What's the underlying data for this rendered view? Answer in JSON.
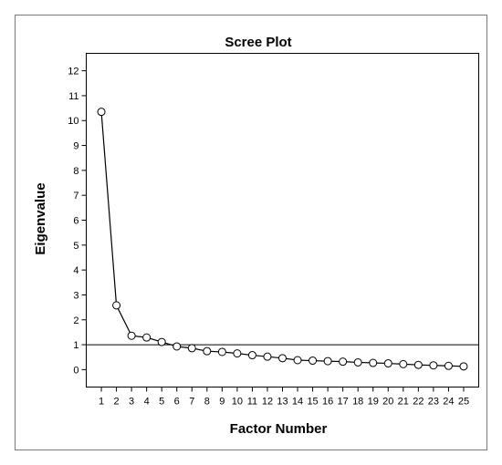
{
  "chart_data": {
    "type": "line",
    "title": "Scree Plot",
    "xlabel": "Factor Number",
    "ylabel": "Eigenvalue",
    "x": [
      1,
      2,
      3,
      4,
      5,
      6,
      7,
      8,
      9,
      10,
      11,
      12,
      13,
      14,
      15,
      16,
      17,
      18,
      19,
      20,
      21,
      22,
      23,
      24,
      25
    ],
    "y": [
      10.35,
      2.58,
      1.36,
      1.29,
      1.11,
      0.93,
      0.86,
      0.74,
      0.71,
      0.65,
      0.58,
      0.52,
      0.46,
      0.38,
      0.36,
      0.34,
      0.32,
      0.29,
      0.27,
      0.25,
      0.22,
      0.19,
      0.17,
      0.15,
      0.13
    ],
    "xticks": [
      "1",
      "2",
      "3",
      "4",
      "5",
      "6",
      "7",
      "8",
      "9",
      "10",
      "11",
      "12",
      "13",
      "14",
      "15",
      "16",
      "17",
      "18",
      "19",
      "20",
      "21",
      "22",
      "23",
      "24",
      "25"
    ],
    "yticks": [
      "0",
      "1",
      "2",
      "3",
      "4",
      "5",
      "6",
      "7",
      "8",
      "9",
      "10",
      "11",
      "12"
    ],
    "ylim": [
      -0.7,
      12.7
    ],
    "xlim": [
      0,
      26
    ],
    "reference_line_y": 1,
    "grid": false,
    "marker": "open-circle",
    "colors": {
      "line": "#000000",
      "frame": "#000000",
      "background": "#ffffff",
      "outer_border": "#7a7a7a"
    }
  }
}
